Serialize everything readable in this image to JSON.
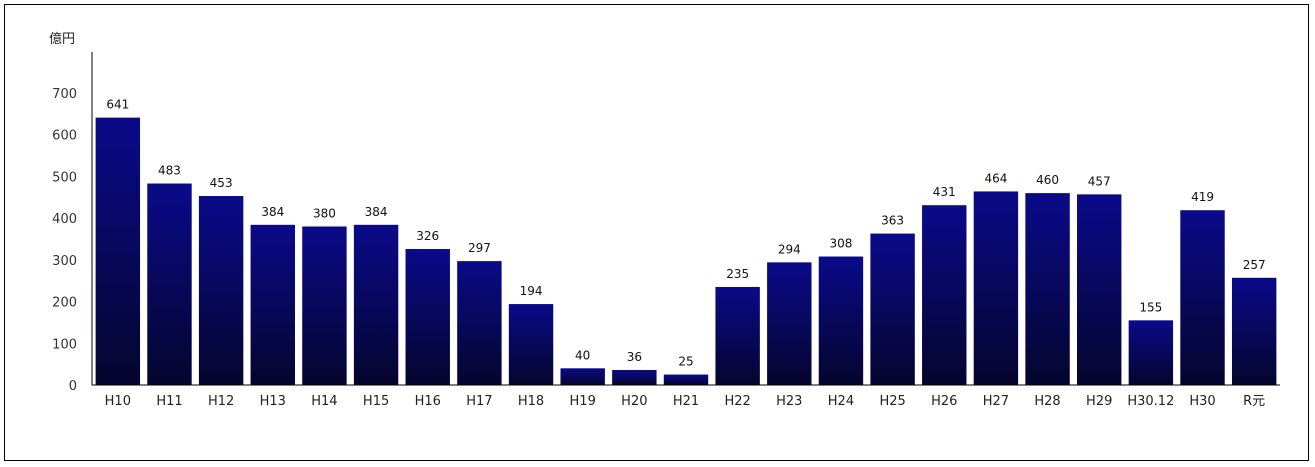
{
  "chart_data": {
    "type": "bar",
    "title": "",
    "ylabel": "億円",
    "xlabel": "",
    "ylim": [
      0,
      700
    ],
    "yticks": [
      0,
      100,
      200,
      300,
      400,
      500,
      600,
      700
    ],
    "grid": false,
    "legend": "none",
    "categories": [
      "H10",
      "H11",
      "H12",
      "H13",
      "H14",
      "H15",
      "H16",
      "H17",
      "H18",
      "H19",
      "H20",
      "H21",
      "H22",
      "H23",
      "H24",
      "H25",
      "H26",
      "H27",
      "H28",
      "H29",
      "H30.12",
      "H30",
      "R元"
    ],
    "values": [
      641,
      483,
      453,
      384,
      380,
      384,
      326,
      297,
      194,
      40,
      36,
      25,
      235,
      294,
      308,
      363,
      431,
      464,
      460,
      457,
      155,
      419,
      257
    ],
    "data_labels": [
      "641",
      "483",
      "453",
      "384",
      "380",
      "384",
      "326",
      "297",
      "194",
      "40",
      "36",
      "25",
      "235",
      "294",
      "308",
      "363",
      "431",
      "464",
      "460",
      "457",
      "155",
      "419",
      "257"
    ],
    "colors": {
      "bar_top": "#0a0a8a",
      "bar_bottom": "#05052e",
      "axis": "#000000"
    }
  }
}
